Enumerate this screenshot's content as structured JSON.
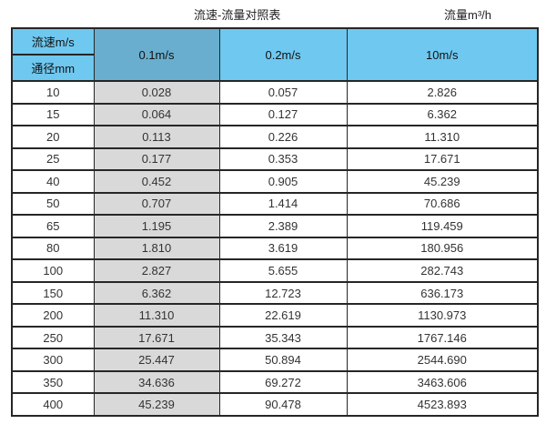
{
  "titles": {
    "main": "流速-流量对照表",
    "unit": "流量m³/h"
  },
  "chart_data": {
    "type": "table",
    "title": "流速-流量对照表",
    "right_title": "流量m³/h",
    "corner_header": [
      "流速m/s",
      "通径mm"
    ],
    "columns": [
      "0.1m/s",
      "0.2m/s",
      "10m/s"
    ],
    "row_header_unit": "mm",
    "rows": [
      {
        "diameter": "10",
        "values": [
          "0.028",
          "0.057",
          "2.826"
        ]
      },
      {
        "diameter": "15",
        "values": [
          "0.064",
          "0.127",
          "6.362"
        ]
      },
      {
        "diameter": "20",
        "values": [
          "0.113",
          "0.226",
          "11.310"
        ]
      },
      {
        "diameter": "25",
        "values": [
          "0.177",
          "0.353",
          "17.671"
        ]
      },
      {
        "diameter": "40",
        "values": [
          "0.452",
          "0.905",
          "45.239"
        ]
      },
      {
        "diameter": "50",
        "values": [
          "0.707",
          "1.414",
          "70.686"
        ]
      },
      {
        "diameter": "65",
        "values": [
          "1.195",
          "2.389",
          "119.459"
        ]
      },
      {
        "diameter": "80",
        "values": [
          "1.810",
          "3.619",
          "180.956"
        ]
      },
      {
        "diameter": "100",
        "values": [
          "2.827",
          "5.655",
          "282.743"
        ]
      },
      {
        "diameter": "150",
        "values": [
          "6.362",
          "12.723",
          "636.173"
        ]
      },
      {
        "diameter": "200",
        "values": [
          "11.310",
          "22.619",
          "1130.973"
        ]
      },
      {
        "diameter": "250",
        "values": [
          "17.671",
          "35.343",
          "1767.146"
        ]
      },
      {
        "diameter": "300",
        "values": [
          "25.447",
          "50.894",
          "2544.690"
        ]
      },
      {
        "diameter": "350",
        "values": [
          "34.636",
          "69.272",
          "3463.606"
        ]
      },
      {
        "diameter": "400",
        "values": [
          "45.239",
          "90.478",
          "4523.893"
        ]
      }
    ]
  },
  "colors": {
    "header_blue": "#6FC8F0",
    "header_highlight_blue": "#69AECE",
    "shaded_column_gray": "#D9D9D9",
    "border": "#262626",
    "text": "#333333"
  }
}
